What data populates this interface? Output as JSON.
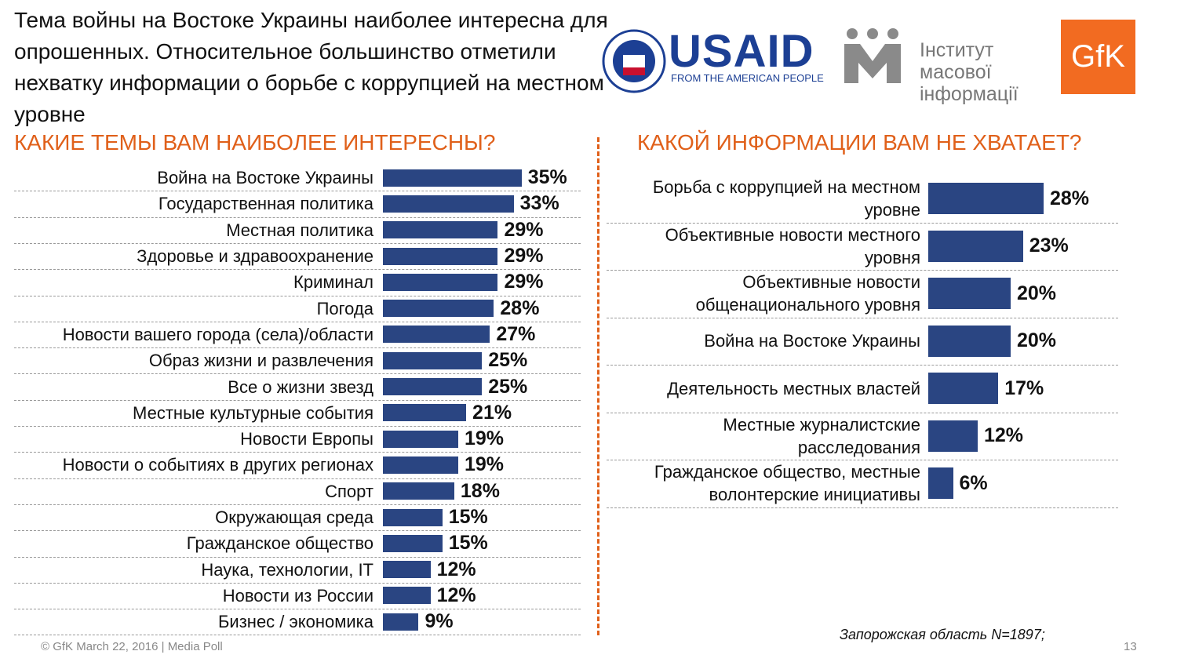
{
  "header": {
    "title": "Тема войны на Востоке Украины наиболее интересна для опрошенных. Относительное большинство отметили нехватку информации о борьбе с коррупцией на местном уровне"
  },
  "logos": {
    "usaid": "USAID",
    "usaid_tagline": "FROM THE AMERICAN PEOPLE",
    "imi": "Інститут масової інформації",
    "gfk": "GfK"
  },
  "chart_data": [
    {
      "type": "hbar",
      "title": "КАКИЕ ТЕМЫ ВАМ НАИБОЛЕЕ ИНТЕРЕСНЫ?",
      "color": "#2a4582",
      "categories": [
        "Война на Востоке Украины",
        "Государственная политика",
        "Местная политика",
        "Здоровье и здравоохранение",
        "Криминал",
        "Погода",
        "Новости вашего города (села)/области",
        "Образ жизни и развлечения",
        "Все о жизни звезд",
        "Местные культурные события",
        "Новости Европы",
        "Новости о событиях в других регионах",
        "Спорт",
        "Окружающая среда",
        "Гражданское общество",
        "Наука, технологии, IT",
        "Новости из России",
        "Бизнес / экономика"
      ],
      "values": [
        35,
        33,
        29,
        29,
        29,
        28,
        27,
        25,
        25,
        21,
        19,
        19,
        18,
        15,
        15,
        12,
        12,
        9
      ],
      "value_labels": [
        "35%",
        "33%",
        "29%",
        "29%",
        "29%",
        "28%",
        "27%",
        "25%",
        "25%",
        "21%",
        "19%",
        "19%",
        "18%",
        "15%",
        "15%",
        "12%",
        "12%",
        "9%"
      ]
    },
    {
      "type": "hbar",
      "title": "КАКОЙ ИНФОРМАЦИИ ВАМ НЕ ХВАТАЕТ?",
      "color": "#2a4582",
      "categories": [
        "Борьба с коррупцией на местном уровне",
        "Объективные новости местного уровня",
        "Объективные новости общенационального уровня",
        "Война на Востоке Украины",
        "Деятельность местных властей",
        "Местные журналистские расследования",
        "Гражданское общество, местные волонтерские инициативы"
      ],
      "values": [
        28,
        23,
        20,
        20,
        17,
        12,
        6
      ],
      "value_labels": [
        "28%",
        "23%",
        "20%",
        "20%",
        "17%",
        "12%",
        "6%"
      ]
    }
  ],
  "note": "Запорожская область N=1897;",
  "footer": {
    "source": "© GfK March 22, 2016 | Media Poll",
    "page": "13"
  }
}
